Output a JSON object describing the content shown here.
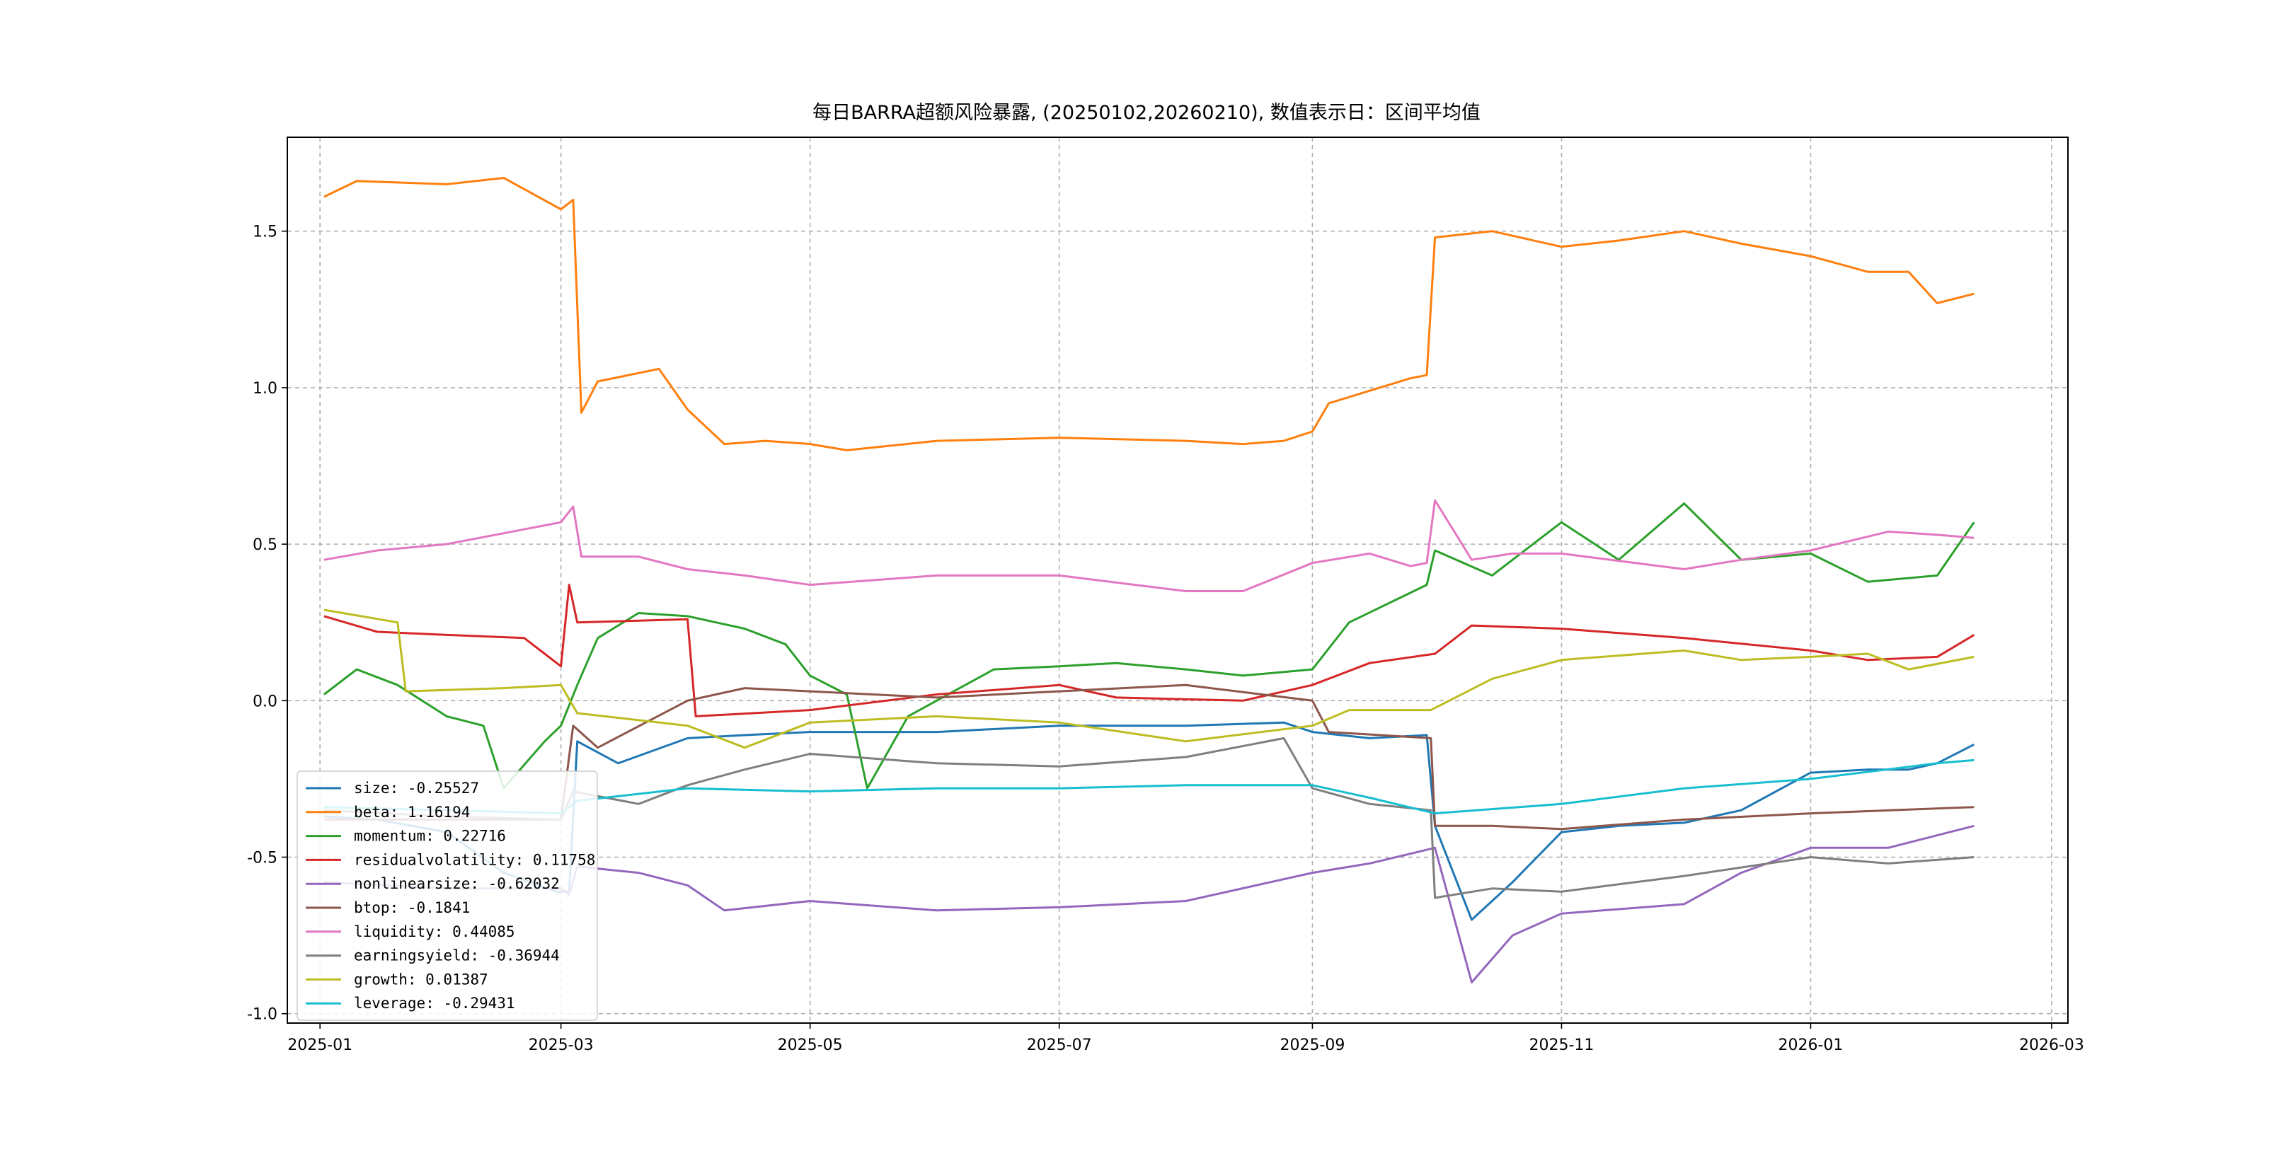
{
  "chart_data": {
    "type": "line",
    "title": "每日BARRA超额风险暴露, (20250102,20260210), 数值表示日：区间平均值",
    "xlabel": "",
    "ylabel": "",
    "x_range": [
      "2024-12-24",
      "2026-03-05"
    ],
    "ylim": [
      -1.03,
      1.8
    ],
    "x_ticks": [
      "2025-01",
      "2025-03",
      "2025-05",
      "2025-07",
      "2025-09",
      "2025-11",
      "2026-01",
      "2026-03"
    ],
    "x_tick_dates": [
      "2025-01-01",
      "2025-03-01",
      "2025-05-01",
      "2025-07-01",
      "2025-09-01",
      "2025-11-01",
      "2026-01-01",
      "2026-03-01"
    ],
    "y_ticks": [
      -1.0,
      -0.5,
      0.0,
      0.5,
      1.0,
      1.5
    ],
    "y_tick_labels": [
      "-1.0",
      "-0.5",
      "0.0",
      "0.5",
      "1.0",
      "1.5"
    ],
    "grid": true,
    "legend_position": "lower-left",
    "series": [
      {
        "name": "size: -0.25527",
        "color": "#1f77b4",
        "points": [
          [
            "2025-01-02",
            -0.37
          ],
          [
            "2025-01-15",
            -0.38
          ],
          [
            "2025-02-01",
            -0.42
          ],
          [
            "2025-02-15",
            -0.55
          ],
          [
            "2025-02-28",
            -0.61
          ],
          [
            "2025-03-03",
            -0.61
          ],
          [
            "2025-03-05",
            -0.13
          ],
          [
            "2025-03-15",
            -0.2
          ],
          [
            "2025-04-01",
            -0.12
          ],
          [
            "2025-04-15",
            -0.11
          ],
          [
            "2025-05-01",
            -0.1
          ],
          [
            "2025-06-01",
            -0.1
          ],
          [
            "2025-07-01",
            -0.08
          ],
          [
            "2025-08-01",
            -0.08
          ],
          [
            "2025-08-25",
            -0.07
          ],
          [
            "2025-09-01",
            -0.1
          ],
          [
            "2025-09-15",
            -0.12
          ],
          [
            "2025-09-29",
            -0.11
          ],
          [
            "2025-10-01",
            -0.4
          ],
          [
            "2025-10-10",
            -0.7
          ],
          [
            "2025-10-20",
            -0.58
          ],
          [
            "2025-11-01",
            -0.42
          ],
          [
            "2025-11-15",
            -0.4
          ],
          [
            "2025-12-01",
            -0.39
          ],
          [
            "2025-12-15",
            -0.35
          ],
          [
            "2026-01-01",
            -0.23
          ],
          [
            "2026-01-15",
            -0.22
          ],
          [
            "2026-01-25",
            -0.22
          ],
          [
            "2026-02-01",
            -0.2
          ],
          [
            "2026-02-10",
            -0.14
          ]
        ]
      },
      {
        "name": "beta: 1.16194",
        "color": "#ff7f0e",
        "points": [
          [
            "2025-01-02",
            1.61
          ],
          [
            "2025-01-10",
            1.66
          ],
          [
            "2025-02-01",
            1.65
          ],
          [
            "2025-02-15",
            1.67
          ],
          [
            "2025-03-01",
            1.57
          ],
          [
            "2025-03-04",
            1.6
          ],
          [
            "2025-03-06",
            0.92
          ],
          [
            "2025-03-10",
            1.02
          ],
          [
            "2025-03-25",
            1.06
          ],
          [
            "2025-04-01",
            0.93
          ],
          [
            "2025-04-10",
            0.82
          ],
          [
            "2025-04-20",
            0.83
          ],
          [
            "2025-05-01",
            0.82
          ],
          [
            "2025-05-10",
            0.8
          ],
          [
            "2025-06-01",
            0.83
          ],
          [
            "2025-07-01",
            0.84
          ],
          [
            "2025-08-01",
            0.83
          ],
          [
            "2025-08-15",
            0.82
          ],
          [
            "2025-08-25",
            0.83
          ],
          [
            "2025-09-01",
            0.86
          ],
          [
            "2025-09-05",
            0.95
          ],
          [
            "2025-09-15",
            0.99
          ],
          [
            "2025-09-25",
            1.03
          ],
          [
            "2025-09-29",
            1.04
          ],
          [
            "2025-10-01",
            1.48
          ],
          [
            "2025-10-15",
            1.5
          ],
          [
            "2025-11-01",
            1.45
          ],
          [
            "2025-11-15",
            1.47
          ],
          [
            "2025-12-01",
            1.5
          ],
          [
            "2025-12-15",
            1.46
          ],
          [
            "2026-01-01",
            1.42
          ],
          [
            "2026-01-15",
            1.37
          ],
          [
            "2026-01-25",
            1.37
          ],
          [
            "2026-02-01",
            1.27
          ],
          [
            "2026-02-10",
            1.3
          ]
        ]
      },
      {
        "name": "momentum: 0.22716",
        "color": "#2ca02c",
        "points": [
          [
            "2025-01-02",
            0.02
          ],
          [
            "2025-01-10",
            0.1
          ],
          [
            "2025-01-20",
            0.05
          ],
          [
            "2025-02-01",
            -0.05
          ],
          [
            "2025-02-10",
            -0.08
          ],
          [
            "2025-02-15",
            -0.28
          ],
          [
            "2025-02-25",
            -0.13
          ],
          [
            "2025-03-01",
            -0.08
          ],
          [
            "2025-03-05",
            0.05
          ],
          [
            "2025-03-10",
            0.2
          ],
          [
            "2025-03-20",
            0.28
          ],
          [
            "2025-04-01",
            0.27
          ],
          [
            "2025-04-15",
            0.23
          ],
          [
            "2025-04-25",
            0.18
          ],
          [
            "2025-05-01",
            0.08
          ],
          [
            "2025-05-10",
            0.02
          ],
          [
            "2025-05-15",
            -0.28
          ],
          [
            "2025-05-25",
            -0.05
          ],
          [
            "2025-06-01",
            0.0
          ],
          [
            "2025-06-15",
            0.1
          ],
          [
            "2025-07-01",
            0.11
          ],
          [
            "2025-07-15",
            0.12
          ],
          [
            "2025-08-01",
            0.1
          ],
          [
            "2025-08-15",
            0.08
          ],
          [
            "2025-09-01",
            0.1
          ],
          [
            "2025-09-10",
            0.25
          ],
          [
            "2025-09-29",
            0.37
          ],
          [
            "2025-10-01",
            0.48
          ],
          [
            "2025-10-15",
            0.4
          ],
          [
            "2025-11-01",
            0.57
          ],
          [
            "2025-11-15",
            0.45
          ],
          [
            "2025-12-01",
            0.63
          ],
          [
            "2025-12-15",
            0.45
          ],
          [
            "2026-01-01",
            0.47
          ],
          [
            "2026-01-15",
            0.38
          ],
          [
            "2026-02-01",
            0.4
          ],
          [
            "2026-02-10",
            0.57
          ]
        ]
      },
      {
        "name": "residualvolatility: 0.11758",
        "color": "#d62728",
        "points": [
          [
            "2025-01-02",
            0.27
          ],
          [
            "2025-01-15",
            0.22
          ],
          [
            "2025-02-01",
            0.21
          ],
          [
            "2025-02-20",
            0.2
          ],
          [
            "2025-03-01",
            0.11
          ],
          [
            "2025-03-03",
            0.37
          ],
          [
            "2025-03-05",
            0.25
          ],
          [
            "2025-04-01",
            0.26
          ],
          [
            "2025-04-03",
            -0.05
          ],
          [
            "2025-05-01",
            -0.03
          ],
          [
            "2025-06-01",
            0.02
          ],
          [
            "2025-07-01",
            0.05
          ],
          [
            "2025-07-15",
            0.01
          ],
          [
            "2025-08-15",
            0.0
          ],
          [
            "2025-09-01",
            0.05
          ],
          [
            "2025-09-15",
            0.12
          ],
          [
            "2025-10-01",
            0.15
          ],
          [
            "2025-10-10",
            0.24
          ],
          [
            "2025-11-01",
            0.23
          ],
          [
            "2025-12-01",
            0.2
          ],
          [
            "2026-01-01",
            0.16
          ],
          [
            "2026-01-15",
            0.13
          ],
          [
            "2026-02-01",
            0.14
          ],
          [
            "2026-02-10",
            0.21
          ]
        ]
      },
      {
        "name": "nonlinearsize: -0.62032",
        "color": "#9467bd",
        "points": [
          [
            "2025-01-02",
            -0.58
          ],
          [
            "2025-02-01",
            -0.6
          ],
          [
            "2025-03-01",
            -0.6
          ],
          [
            "2025-03-03",
            -0.62
          ],
          [
            "2025-03-05",
            -0.53
          ],
          [
            "2025-03-20",
            -0.55
          ],
          [
            "2025-04-01",
            -0.59
          ],
          [
            "2025-04-10",
            -0.67
          ],
          [
            "2025-05-01",
            -0.64
          ],
          [
            "2025-06-01",
            -0.67
          ],
          [
            "2025-07-01",
            -0.66
          ],
          [
            "2025-08-01",
            -0.64
          ],
          [
            "2025-09-01",
            -0.55
          ],
          [
            "2025-09-15",
            -0.52
          ],
          [
            "2025-10-01",
            -0.47
          ],
          [
            "2025-10-10",
            -0.9
          ],
          [
            "2025-10-20",
            -0.75
          ],
          [
            "2025-11-01",
            -0.68
          ],
          [
            "2025-12-01",
            -0.65
          ],
          [
            "2025-12-15",
            -0.55
          ],
          [
            "2026-01-01",
            -0.47
          ],
          [
            "2026-01-20",
            -0.47
          ],
          [
            "2026-02-10",
            -0.4
          ]
        ]
      },
      {
        "name": "btop: -0.1841",
        "color": "#8c564b",
        "points": [
          [
            "2025-01-02",
            -0.38
          ],
          [
            "2025-02-01",
            -0.38
          ],
          [
            "2025-03-01",
            -0.38
          ],
          [
            "2025-03-04",
            -0.08
          ],
          [
            "2025-03-10",
            -0.15
          ],
          [
            "2025-04-01",
            0.0
          ],
          [
            "2025-04-15",
            0.04
          ],
          [
            "2025-05-01",
            0.03
          ],
          [
            "2025-06-01",
            0.01
          ],
          [
            "2025-07-01",
            0.03
          ],
          [
            "2025-08-01",
            0.05
          ],
          [
            "2025-09-01",
            0.0
          ],
          [
            "2025-09-05",
            -0.1
          ],
          [
            "2025-09-30",
            -0.12
          ],
          [
            "2025-10-01",
            -0.4
          ],
          [
            "2025-10-15",
            -0.4
          ],
          [
            "2025-11-01",
            -0.41
          ],
          [
            "2025-12-01",
            -0.38
          ],
          [
            "2026-01-01",
            -0.36
          ],
          [
            "2026-02-10",
            -0.34
          ]
        ]
      },
      {
        "name": "liquidity: 0.44085",
        "color": "#e377c2",
        "points": [
          [
            "2025-01-02",
            0.45
          ],
          [
            "2025-01-15",
            0.48
          ],
          [
            "2025-02-01",
            0.5
          ],
          [
            "2025-03-01",
            0.57
          ],
          [
            "2025-03-04",
            0.62
          ],
          [
            "2025-03-06",
            0.46
          ],
          [
            "2025-03-20",
            0.46
          ],
          [
            "2025-04-01",
            0.42
          ],
          [
            "2025-04-15",
            0.4
          ],
          [
            "2025-05-01",
            0.37
          ],
          [
            "2025-06-01",
            0.4
          ],
          [
            "2025-07-01",
            0.4
          ],
          [
            "2025-08-01",
            0.35
          ],
          [
            "2025-08-15",
            0.35
          ],
          [
            "2025-09-01",
            0.44
          ],
          [
            "2025-09-15",
            0.47
          ],
          [
            "2025-09-25",
            0.43
          ],
          [
            "2025-09-29",
            0.44
          ],
          [
            "2025-10-01",
            0.64
          ],
          [
            "2025-10-10",
            0.45
          ],
          [
            "2025-10-20",
            0.47
          ],
          [
            "2025-11-01",
            0.47
          ],
          [
            "2025-12-01",
            0.42
          ],
          [
            "2025-12-15",
            0.45
          ],
          [
            "2026-01-01",
            0.48
          ],
          [
            "2026-01-20",
            0.54
          ],
          [
            "2026-02-01",
            0.53
          ],
          [
            "2026-02-10",
            0.52
          ]
        ]
      },
      {
        "name": "earningsyield: -0.36944",
        "color": "#7f7f7f",
        "points": [
          [
            "2025-01-02",
            -0.35
          ],
          [
            "2025-02-01",
            -0.37
          ],
          [
            "2025-03-01",
            -0.38
          ],
          [
            "2025-03-04",
            -0.29
          ],
          [
            "2025-03-20",
            -0.33
          ],
          [
            "2025-04-01",
            -0.27
          ],
          [
            "2025-04-15",
            -0.22
          ],
          [
            "2025-05-01",
            -0.17
          ],
          [
            "2025-06-01",
            -0.2
          ],
          [
            "2025-07-01",
            -0.21
          ],
          [
            "2025-08-01",
            -0.18
          ],
          [
            "2025-08-25",
            -0.12
          ],
          [
            "2025-09-01",
            -0.28
          ],
          [
            "2025-09-15",
            -0.33
          ],
          [
            "2025-09-30",
            -0.35
          ],
          [
            "2025-10-01",
            -0.63
          ],
          [
            "2025-10-15",
            -0.6
          ],
          [
            "2025-11-01",
            -0.61
          ],
          [
            "2025-12-01",
            -0.56
          ],
          [
            "2026-01-01",
            -0.5
          ],
          [
            "2026-01-20",
            -0.52
          ],
          [
            "2026-02-10",
            -0.5
          ]
        ]
      },
      {
        "name": "growth: 0.01387",
        "color": "#bcbd22",
        "points": [
          [
            "2025-01-02",
            0.29
          ],
          [
            "2025-01-20",
            0.25
          ],
          [
            "2025-01-22",
            0.03
          ],
          [
            "2025-02-15",
            0.04
          ],
          [
            "2025-03-01",
            0.05
          ],
          [
            "2025-03-05",
            -0.04
          ],
          [
            "2025-04-01",
            -0.08
          ],
          [
            "2025-04-15",
            -0.15
          ],
          [
            "2025-05-01",
            -0.07
          ],
          [
            "2025-06-01",
            -0.05
          ],
          [
            "2025-07-01",
            -0.07
          ],
          [
            "2025-08-01",
            -0.13
          ],
          [
            "2025-09-01",
            -0.08
          ],
          [
            "2025-09-10",
            -0.03
          ],
          [
            "2025-09-30",
            -0.03
          ],
          [
            "2025-10-15",
            0.07
          ],
          [
            "2025-11-01",
            0.13
          ],
          [
            "2025-12-01",
            0.16
          ],
          [
            "2025-12-15",
            0.13
          ],
          [
            "2026-01-01",
            0.14
          ],
          [
            "2026-01-15",
            0.15
          ],
          [
            "2026-01-25",
            0.1
          ],
          [
            "2026-02-10",
            0.14
          ]
        ]
      },
      {
        "name": "leverage: -0.29431",
        "color": "#17becf",
        "points": [
          [
            "2025-01-02",
            -0.34
          ],
          [
            "2025-02-01",
            -0.35
          ],
          [
            "2025-03-01",
            -0.36
          ],
          [
            "2025-03-05",
            -0.32
          ],
          [
            "2025-04-01",
            -0.28
          ],
          [
            "2025-05-01",
            -0.29
          ],
          [
            "2025-06-01",
            -0.28
          ],
          [
            "2025-07-01",
            -0.28
          ],
          [
            "2025-08-01",
            -0.27
          ],
          [
            "2025-09-01",
            -0.27
          ],
          [
            "2025-09-15",
            -0.31
          ],
          [
            "2025-10-01",
            -0.36
          ],
          [
            "2025-11-01",
            -0.33
          ],
          [
            "2025-12-01",
            -0.28
          ],
          [
            "2026-01-01",
            -0.25
          ],
          [
            "2026-02-01",
            -0.2
          ],
          [
            "2026-02-10",
            -0.19
          ]
        ]
      }
    ]
  }
}
